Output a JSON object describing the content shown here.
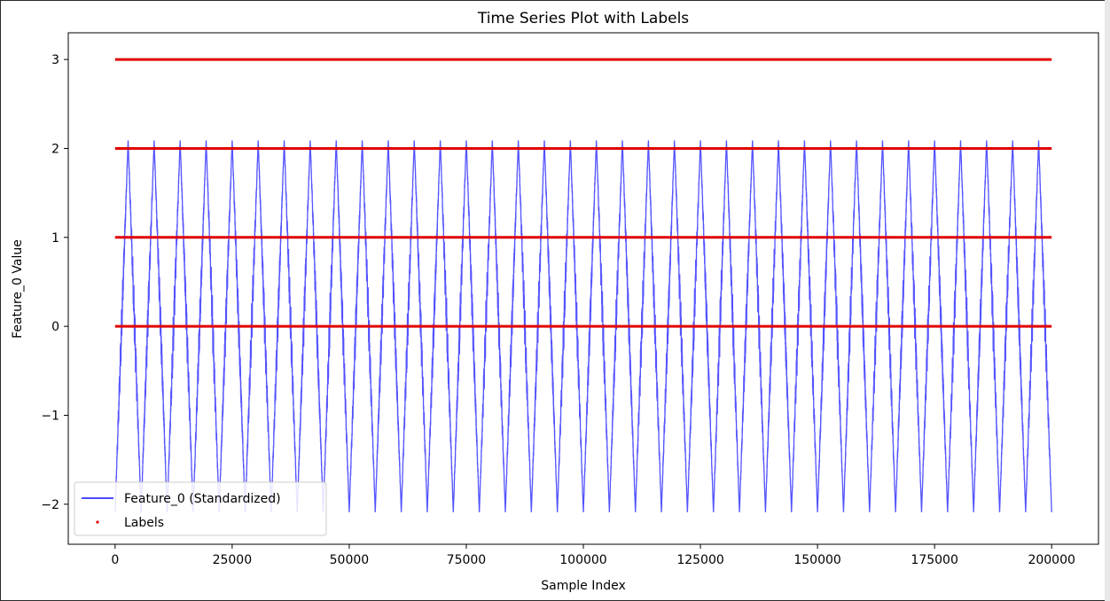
{
  "chart_data": {
    "type": "line",
    "title": "Time Series Plot with Labels",
    "xlabel": "Sample Index",
    "ylabel": "Feature_0 Value",
    "xlim": [
      -10000,
      210000
    ],
    "ylim": [
      -2.45,
      3.3
    ],
    "xticks": [
      0,
      25000,
      50000,
      75000,
      100000,
      125000,
      150000,
      175000,
      200000
    ],
    "xtick_labels": [
      "0",
      "25000",
      "50000",
      "75000",
      "100000",
      "125000",
      "150000",
      "175000",
      "200000"
    ],
    "yticks": [
      -2,
      -1,
      0,
      1,
      2,
      3
    ],
    "ytick_labels": [
      "−2",
      "−1",
      "0",
      "1",
      "2",
      "3"
    ],
    "grid": false,
    "legend_position": "lower-left",
    "series": [
      {
        "name": "Feature_0 (Standardized)",
        "kind": "line",
        "color": "#4a4aff",
        "x_range": [
          0,
          200000
        ],
        "cycles": 36,
        "amplitude": 2.2,
        "min": -2.2,
        "max": 2.2
      },
      {
        "name": "Labels",
        "kind": "scatter",
        "color": "#e00000",
        "x_range": [
          0,
          200000
        ],
        "levels": [
          0,
          1,
          2,
          3
        ]
      }
    ]
  }
}
